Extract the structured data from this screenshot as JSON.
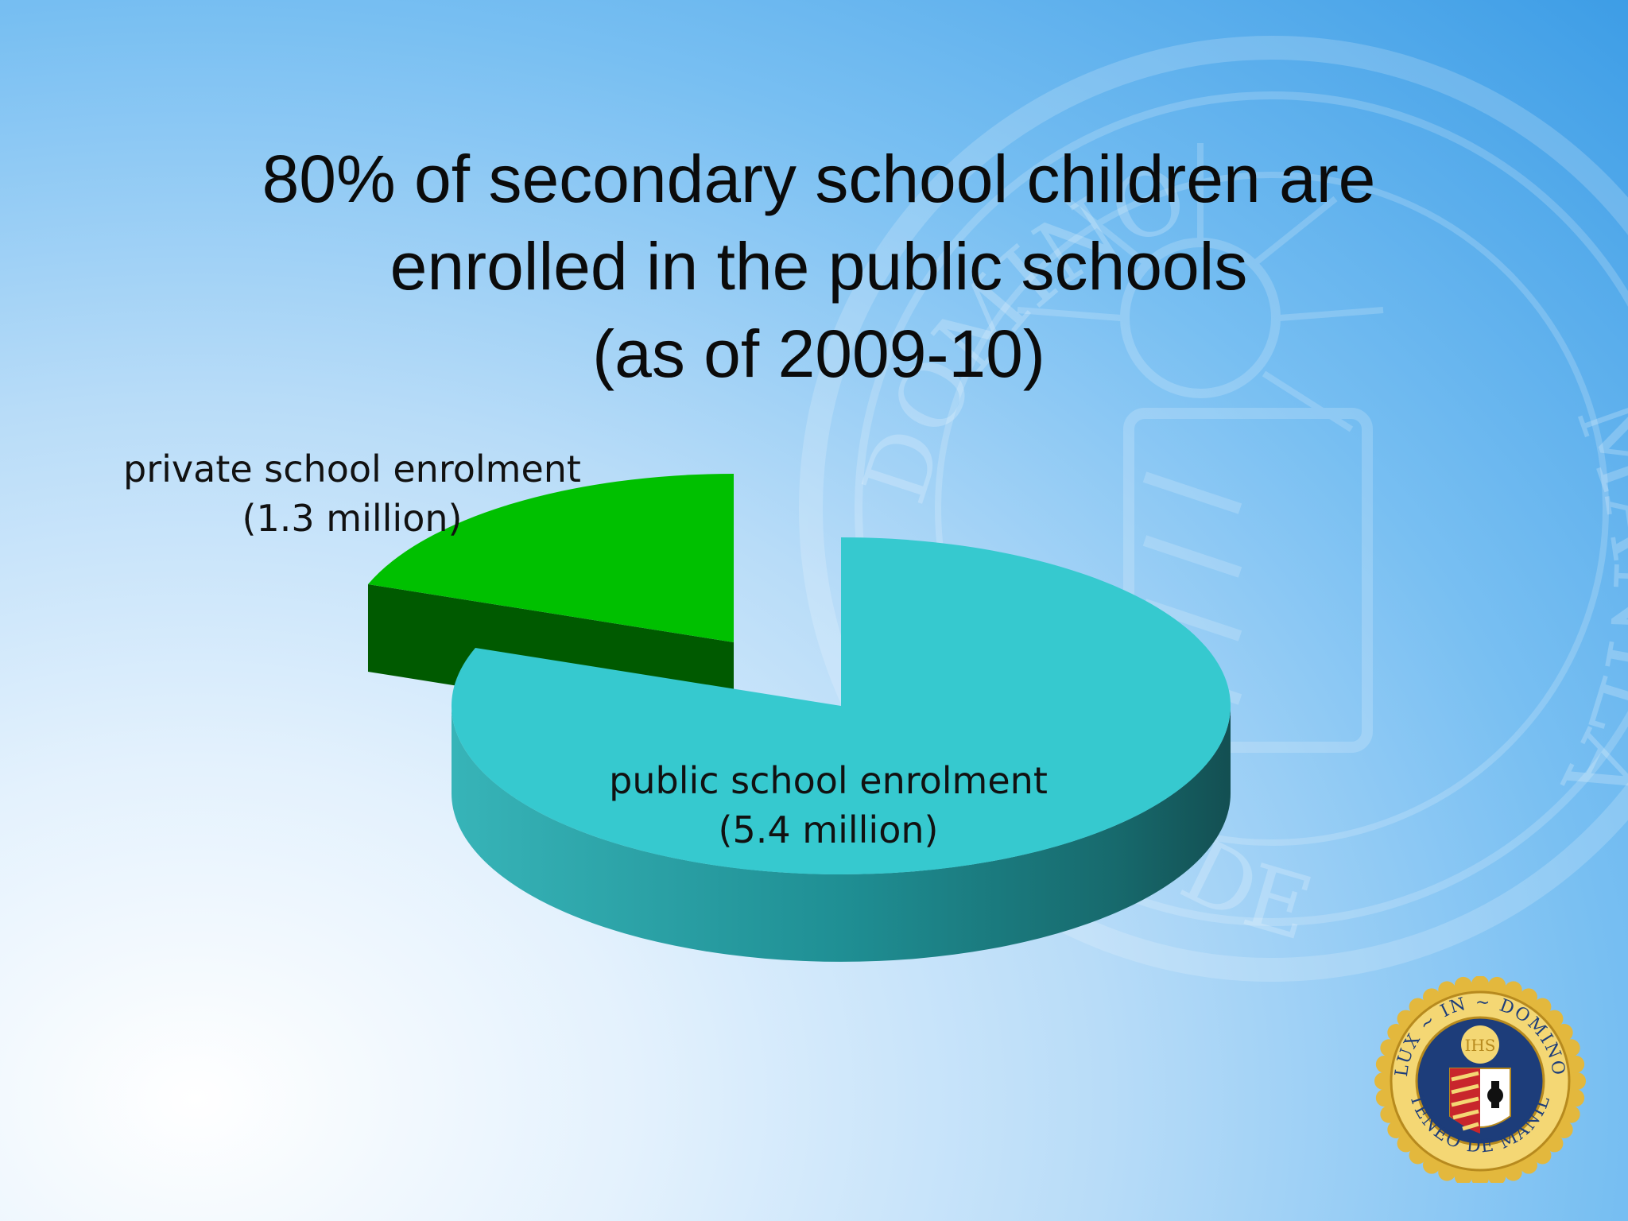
{
  "slide": {
    "title_lines": [
      "80% of secondary school children are",
      "enrolled in the public schools",
      "(as of 2009-10)"
    ]
  },
  "chart_data": {
    "type": "pie",
    "style": "3d-exploded",
    "title": "80% of secondary school children are enrolled in the public schools (as of 2009-10)",
    "slices": [
      {
        "label": "public school enrolment",
        "value_text": "(5.4 million)",
        "value": 5.4,
        "color": "#36c9cf",
        "side_color": "#1f8f95"
      },
      {
        "label": "private school enrolment",
        "value_text": "(1.3 million)",
        "value": 1.3,
        "color": "#00c000",
        "side_color": "#005a00"
      }
    ]
  },
  "logo": {
    "top_text": "LUX ~ IN ~ DOMINO",
    "bottom_text": "ATENEO DE MANILA",
    "monogram": "IHS"
  },
  "watermark": {
    "text_top": "DOMINO",
    "text_right": "MANILA",
    "text_bottom": "DE"
  },
  "colors": {
    "title": "#0b0b0b",
    "logo_gold": "#e0b63a",
    "logo_blue": "#1d3d7a",
    "logo_red": "#c8262c"
  }
}
